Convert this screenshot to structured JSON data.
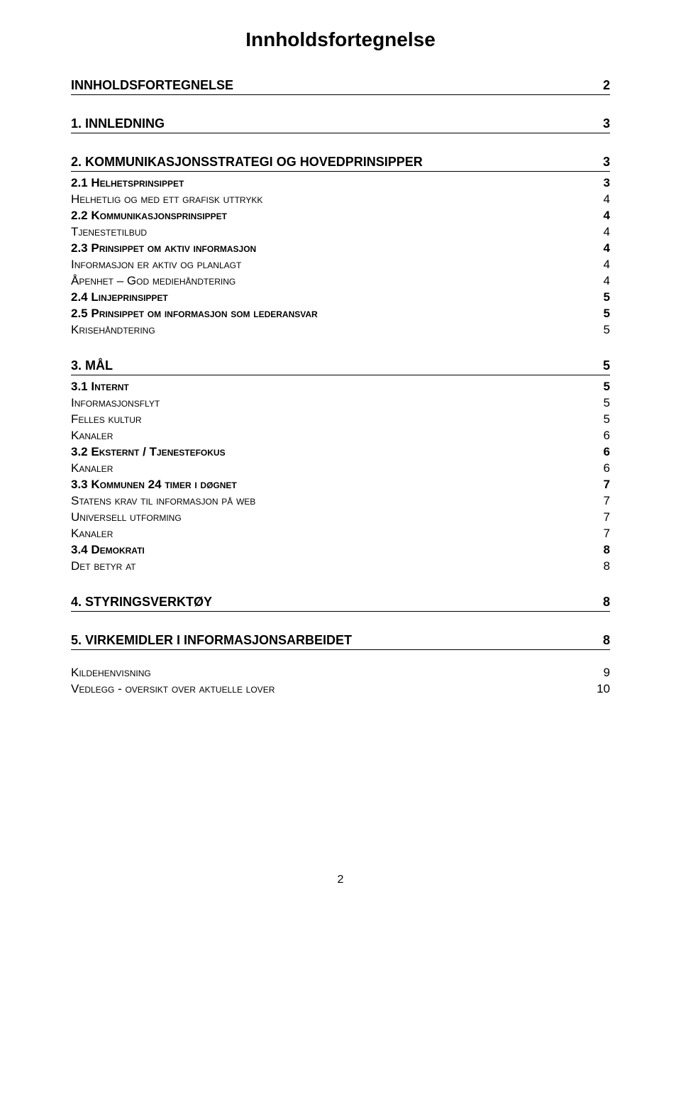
{
  "title": "Innholdsfortegnelse",
  "sections": [
    {
      "type": "heading",
      "label": "INNHOLDSFORTEGNELSE",
      "page": "2",
      "entries": []
    },
    {
      "type": "heading",
      "label": "1. INNLEDNING",
      "page": "3",
      "entries": []
    },
    {
      "type": "heading",
      "label": "2. KOMMUNIKASJONSSTRATEGI OG HOVEDPRINSIPPER",
      "page": "3",
      "entries": [
        {
          "label": "2.1 Helhetsprinsippet",
          "page": "3",
          "bold": true,
          "smallcaps": true,
          "gap": false
        },
        {
          "label": "Helhetlig og med ett grafisk uttrykk",
          "page": "4",
          "bold": false,
          "smallcaps": true,
          "gap": false
        },
        {
          "label": "2.2 Kommunikasjonsprinsippet",
          "page": "4",
          "bold": true,
          "smallcaps": true,
          "gap": false
        },
        {
          "label": "Tjenestetilbud",
          "page": "4",
          "bold": false,
          "smallcaps": true,
          "gap": false
        },
        {
          "label": "2.3 Prinsippet om aktiv informasjon",
          "page": "4",
          "bold": true,
          "smallcaps": true,
          "gap": false
        },
        {
          "label": "Informasjon er aktiv og planlagt",
          "page": "4",
          "bold": false,
          "smallcaps": true,
          "gap": false
        },
        {
          "label": "Åpenhet – God mediehåndtering",
          "page": "4",
          "bold": false,
          "smallcaps": true,
          "gap": false
        },
        {
          "label": "2.4 Linjeprinsippet",
          "page": "5",
          "bold": true,
          "smallcaps": true,
          "gap": false
        },
        {
          "label": "2.5 Prinsippet om informasjon som lederansvar",
          "page": "5",
          "bold": true,
          "smallcaps": true,
          "gap": false
        },
        {
          "label": "Krisehåndtering",
          "page": "5",
          "bold": false,
          "smallcaps": true,
          "gap": false
        }
      ]
    },
    {
      "type": "heading",
      "label": "3. MÅL",
      "page": "5",
      "entries": [
        {
          "label": "3.1 Internt",
          "page": "5",
          "bold": true,
          "smallcaps": true,
          "gap": false
        },
        {
          "label": "Informasjonsflyt",
          "page": "5",
          "bold": false,
          "smallcaps": true,
          "gap": false
        },
        {
          "label": "Felles kultur",
          "page": "5",
          "bold": false,
          "smallcaps": true,
          "gap": false
        },
        {
          "label": "Kanaler",
          "page": "6",
          "bold": false,
          "smallcaps": true,
          "gap": false
        },
        {
          "label": "3.2 Eksternt / Tjenestefokus",
          "page": "6",
          "bold": true,
          "smallcaps": true,
          "gap": false
        },
        {
          "label": "Kanaler",
          "page": "6",
          "bold": false,
          "smallcaps": true,
          "gap": false
        },
        {
          "label": "3.3 Kommunen 24 timer i døgnet",
          "page": "7",
          "bold": true,
          "smallcaps": true,
          "gap": false
        },
        {
          "label": "Statens krav til informasjon på web",
          "page": "7",
          "bold": false,
          "smallcaps": true,
          "gap": false
        },
        {
          "label": "Universell utforming",
          "page": "7",
          "bold": false,
          "smallcaps": true,
          "gap": false
        },
        {
          "label": "Kanaler",
          "page": "7",
          "bold": false,
          "smallcaps": true,
          "gap": false
        },
        {
          "label": "3.4 Demokrati",
          "page": "8",
          "bold": true,
          "smallcaps": true,
          "gap": false
        },
        {
          "label": "Det betyr at",
          "page": "8",
          "bold": false,
          "smallcaps": true,
          "gap": false
        }
      ]
    },
    {
      "type": "heading",
      "label": "4. STYRINGSVERKTØY",
      "page": "8",
      "entries": []
    },
    {
      "type": "heading",
      "label": "5. VIRKEMIDLER I INFORMASJONSARBEIDET",
      "page": "8",
      "entries": [
        {
          "label": "Kildehenvisning",
          "page": "9",
          "bold": false,
          "smallcaps": true,
          "gap": true
        },
        {
          "label": "Vedlegg - oversikt over aktuelle lover",
          "page": "10",
          "bold": false,
          "smallcaps": true,
          "gap": false
        }
      ]
    }
  ],
  "pageNumber": "2",
  "colors": {
    "text": "#000000",
    "background": "#ffffff",
    "rule": "#000000"
  },
  "typography": {
    "title_fontsize": 28,
    "heading_fontsize": 18,
    "entry_fontsize": 17,
    "page_num_fontsize": 16,
    "font_family": "Arial"
  }
}
